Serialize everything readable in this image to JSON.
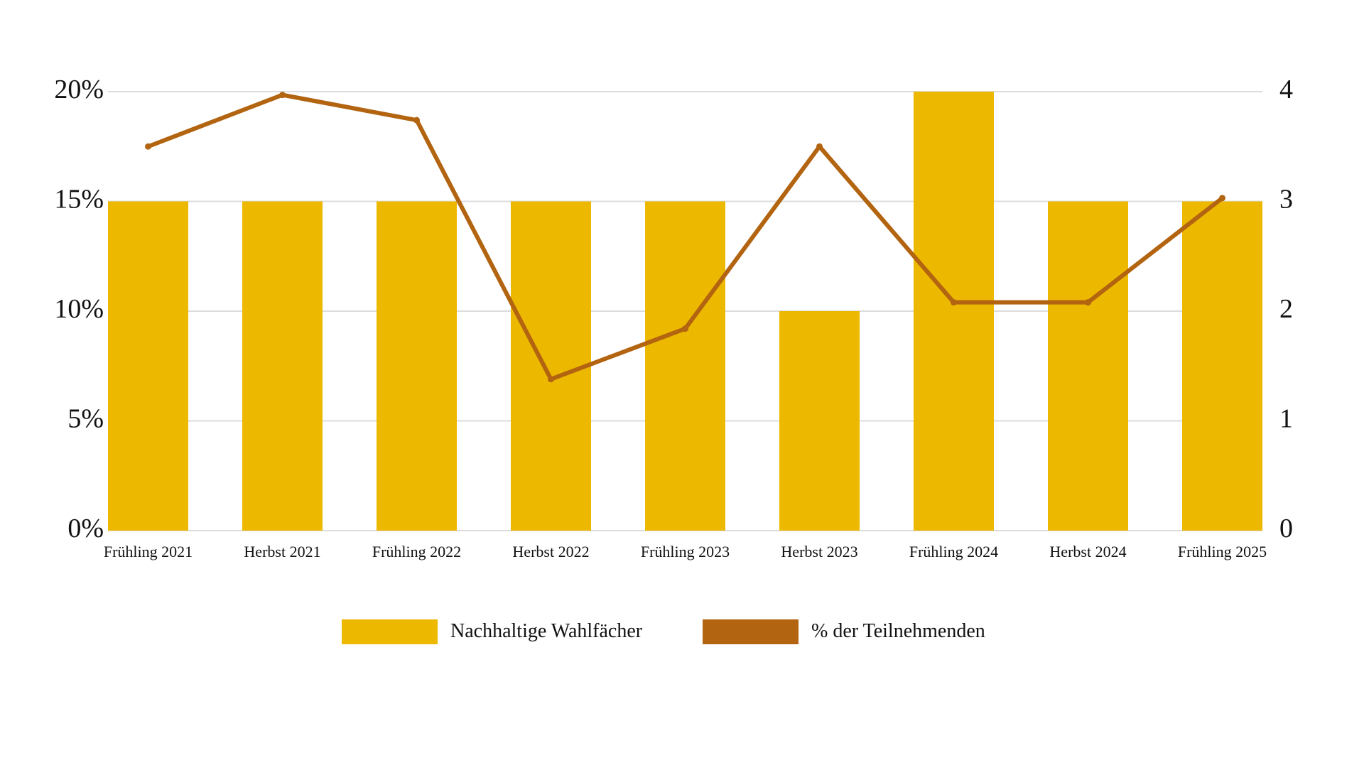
{
  "chart_data": {
    "type": "bar+line",
    "title": "",
    "categories": [
      "Frühling 2021",
      "Herbst 2021",
      "Frühling 2022",
      "Herbst 2022",
      "Frühling 2023",
      "Herbst 2023",
      "Frühling 2024",
      "Herbst 2024",
      "Frühling 2025"
    ],
    "series": [
      {
        "name": "Nachhaltige Wahlfächer",
        "type": "bar",
        "axis": "left",
        "color": "#EDB800",
        "values": [
          15,
          15,
          15,
          15,
          15,
          10,
          20,
          15,
          15
        ]
      },
      {
        "name": "% der Teilnehmenden",
        "type": "line",
        "axis": "right",
        "color": "#B26410",
        "values": [
          3.5,
          3.97,
          3.74,
          1.38,
          1.84,
          3.5,
          2.08,
          2.08,
          3.03
        ]
      }
    ],
    "xlabel": "",
    "ylabel_left": "",
    "ylabel_right": "",
    "ylim_left": [
      0,
      20
    ],
    "ylim_right": [
      0,
      4
    ],
    "yticks_left": [
      "0%",
      "5%",
      "10%",
      "15%",
      "20%"
    ],
    "yticks_right": [
      "0",
      "1",
      "2",
      "3",
      "4"
    ],
    "grid": true,
    "legend_position": "bottom"
  },
  "legend": {
    "items": [
      {
        "label": "Nachhaltige Wahlfächer",
        "color": "#EDB800"
      },
      {
        "label": "% der Teilnehmenden",
        "color": "#B26410"
      }
    ]
  }
}
